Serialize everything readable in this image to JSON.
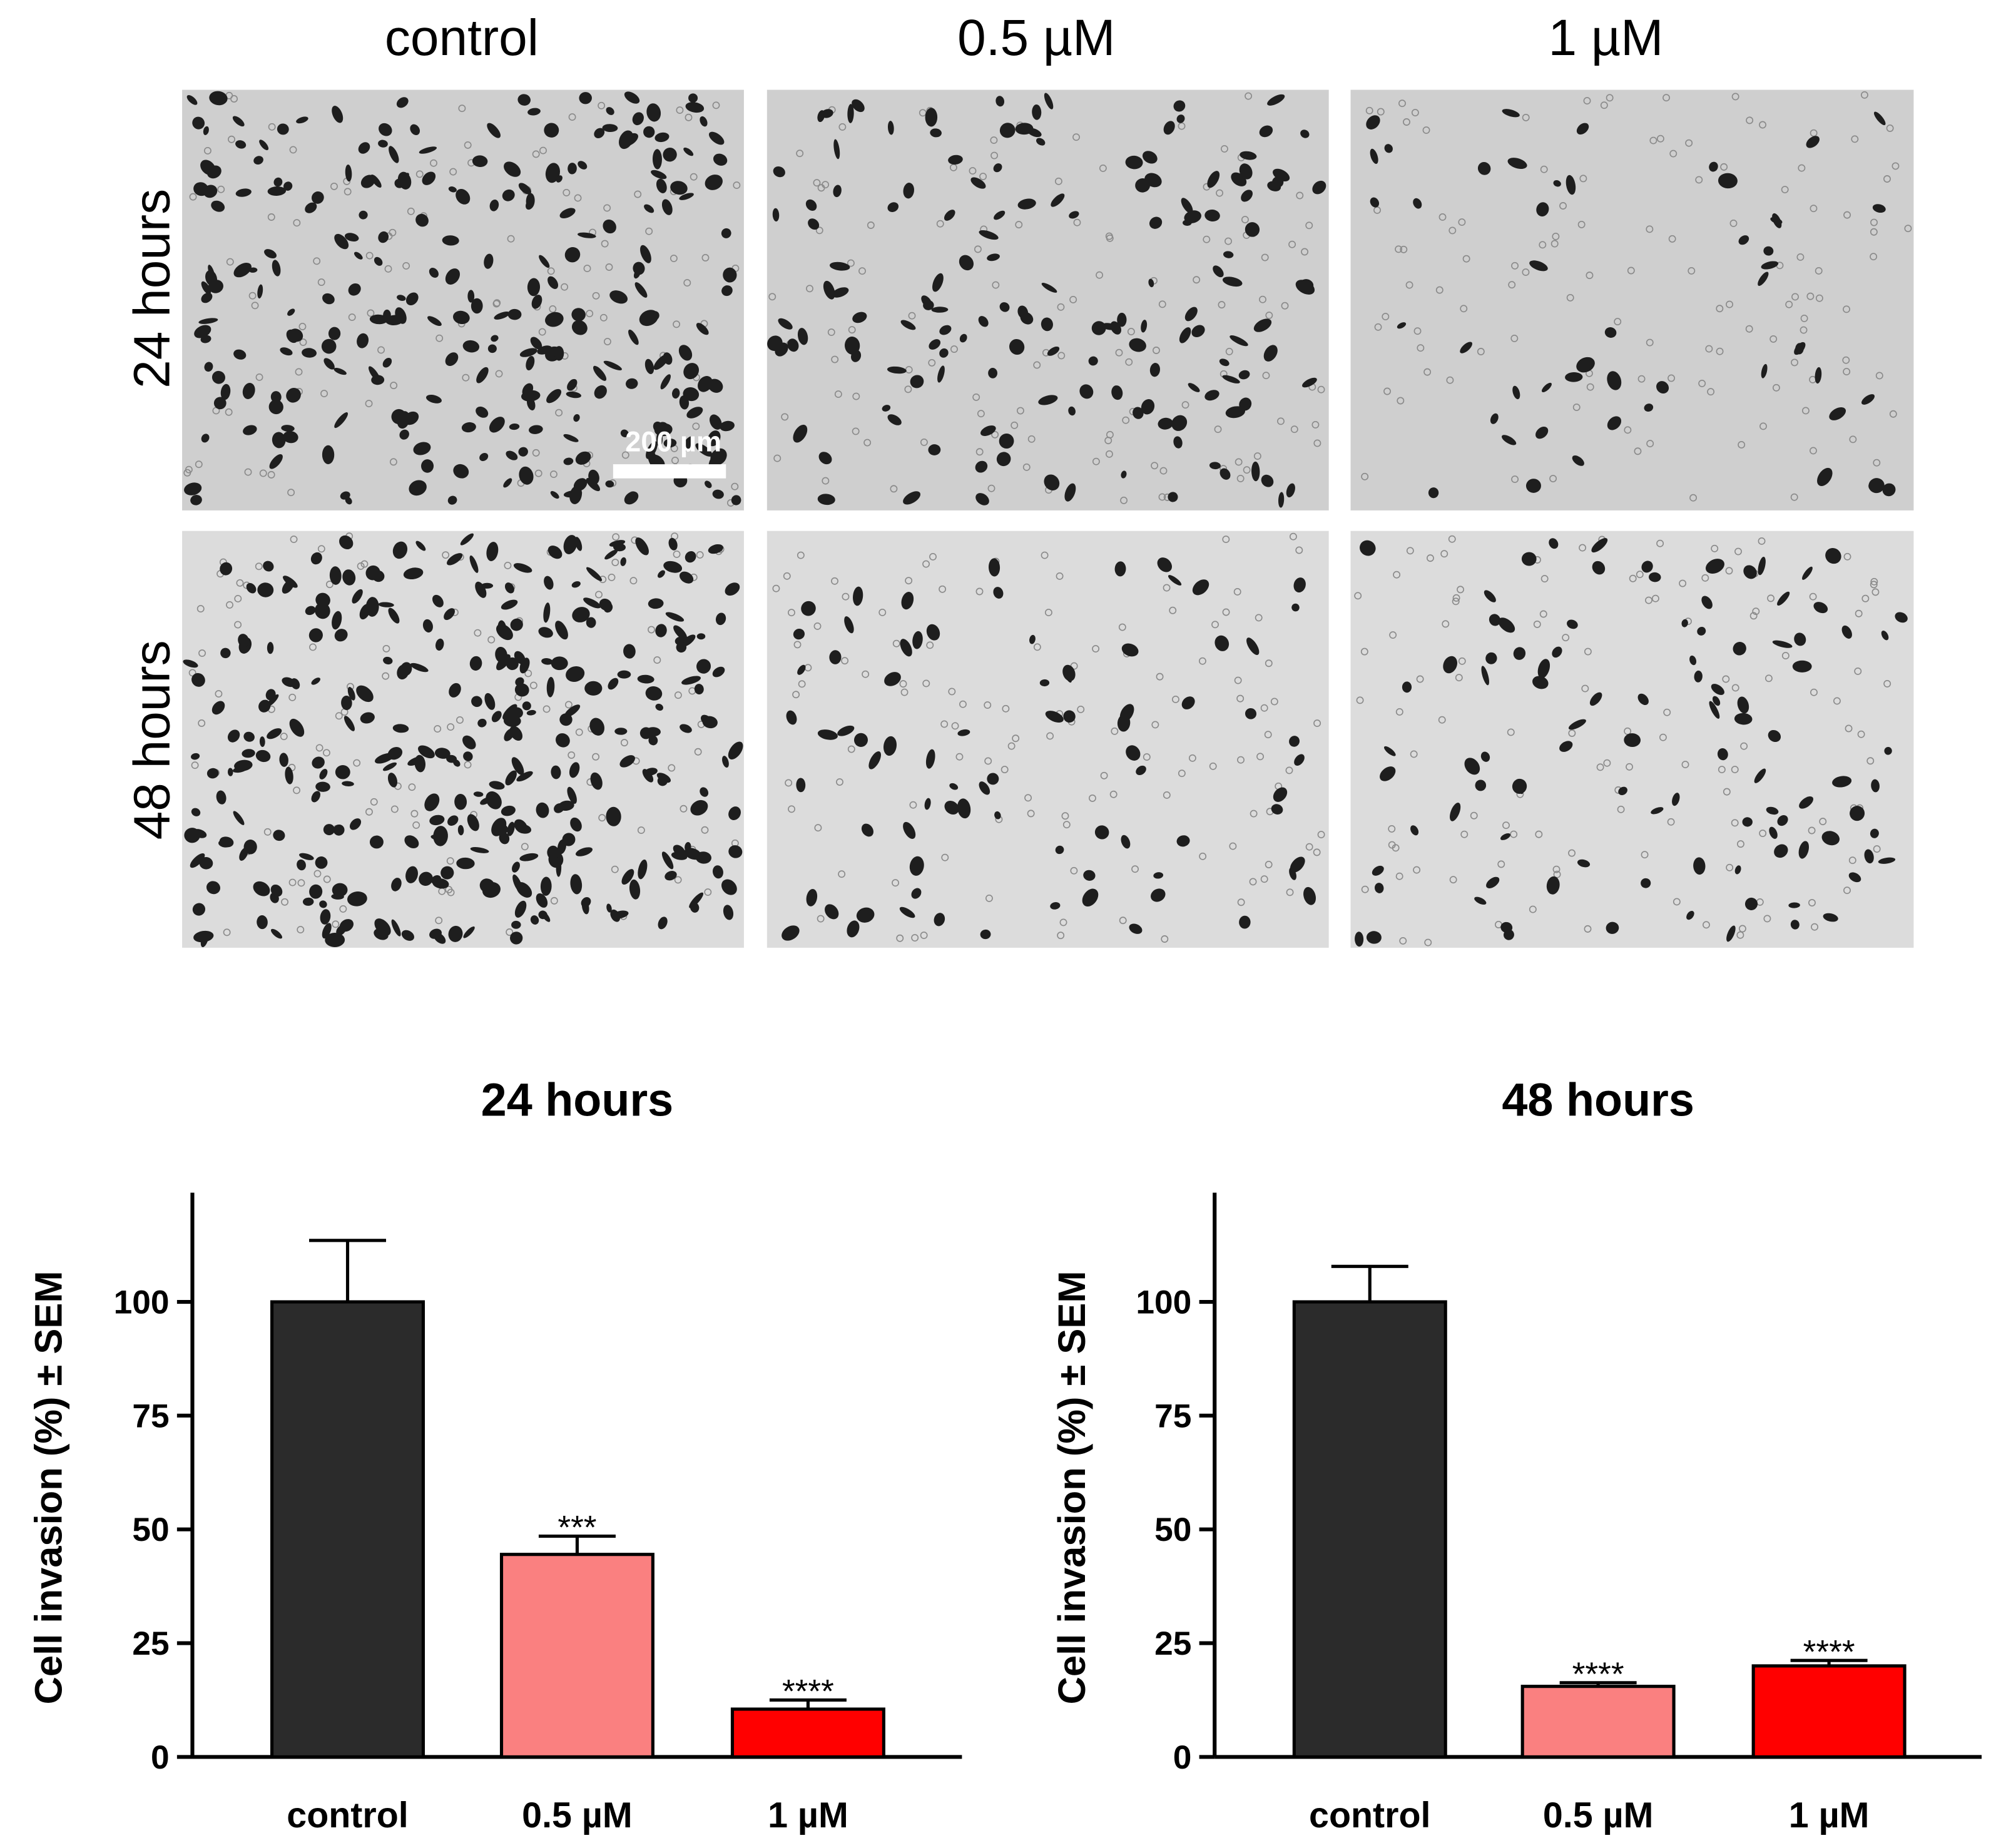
{
  "panels": {
    "columns": [
      "control",
      "0.5 µM",
      "1 µM"
    ],
    "rows": [
      "24 hours",
      "48 hours"
    ],
    "scale_bar": "200 µm"
  },
  "chart_data": [
    {
      "type": "bar",
      "title": "24 hours",
      "y_label": "Cell invasion (%) ± SEM",
      "categories": [
        "control",
        "0.5 µM",
        "1 µM"
      ],
      "values": [
        100,
        44.5,
        10.5
      ],
      "errors": [
        13.5,
        4,
        2
      ],
      "colors": [
        "#2b2b2b",
        "#fa8080",
        "#ff0000"
      ],
      "annotations": [
        null,
        "***",
        "****"
      ],
      "ylim": [
        0,
        124
      ],
      "yticks": [
        0,
        25,
        50,
        75,
        100
      ]
    },
    {
      "type": "bar",
      "title": "48 hours",
      "y_label": "Cell invasion (%) ± SEM",
      "categories": [
        "control",
        "0.5 µM",
        "1 µM"
      ],
      "values": [
        100,
        15.5,
        20
      ],
      "errors": [
        7.8,
        0.8,
        1.2
      ],
      "colors": [
        "#2b2b2b",
        "#fa8080",
        "#ff0000"
      ],
      "annotations": [
        null,
        "****",
        "****"
      ],
      "ylim": [
        0,
        124
      ],
      "yticks": [
        0,
        25,
        50,
        75,
        100
      ]
    }
  ]
}
